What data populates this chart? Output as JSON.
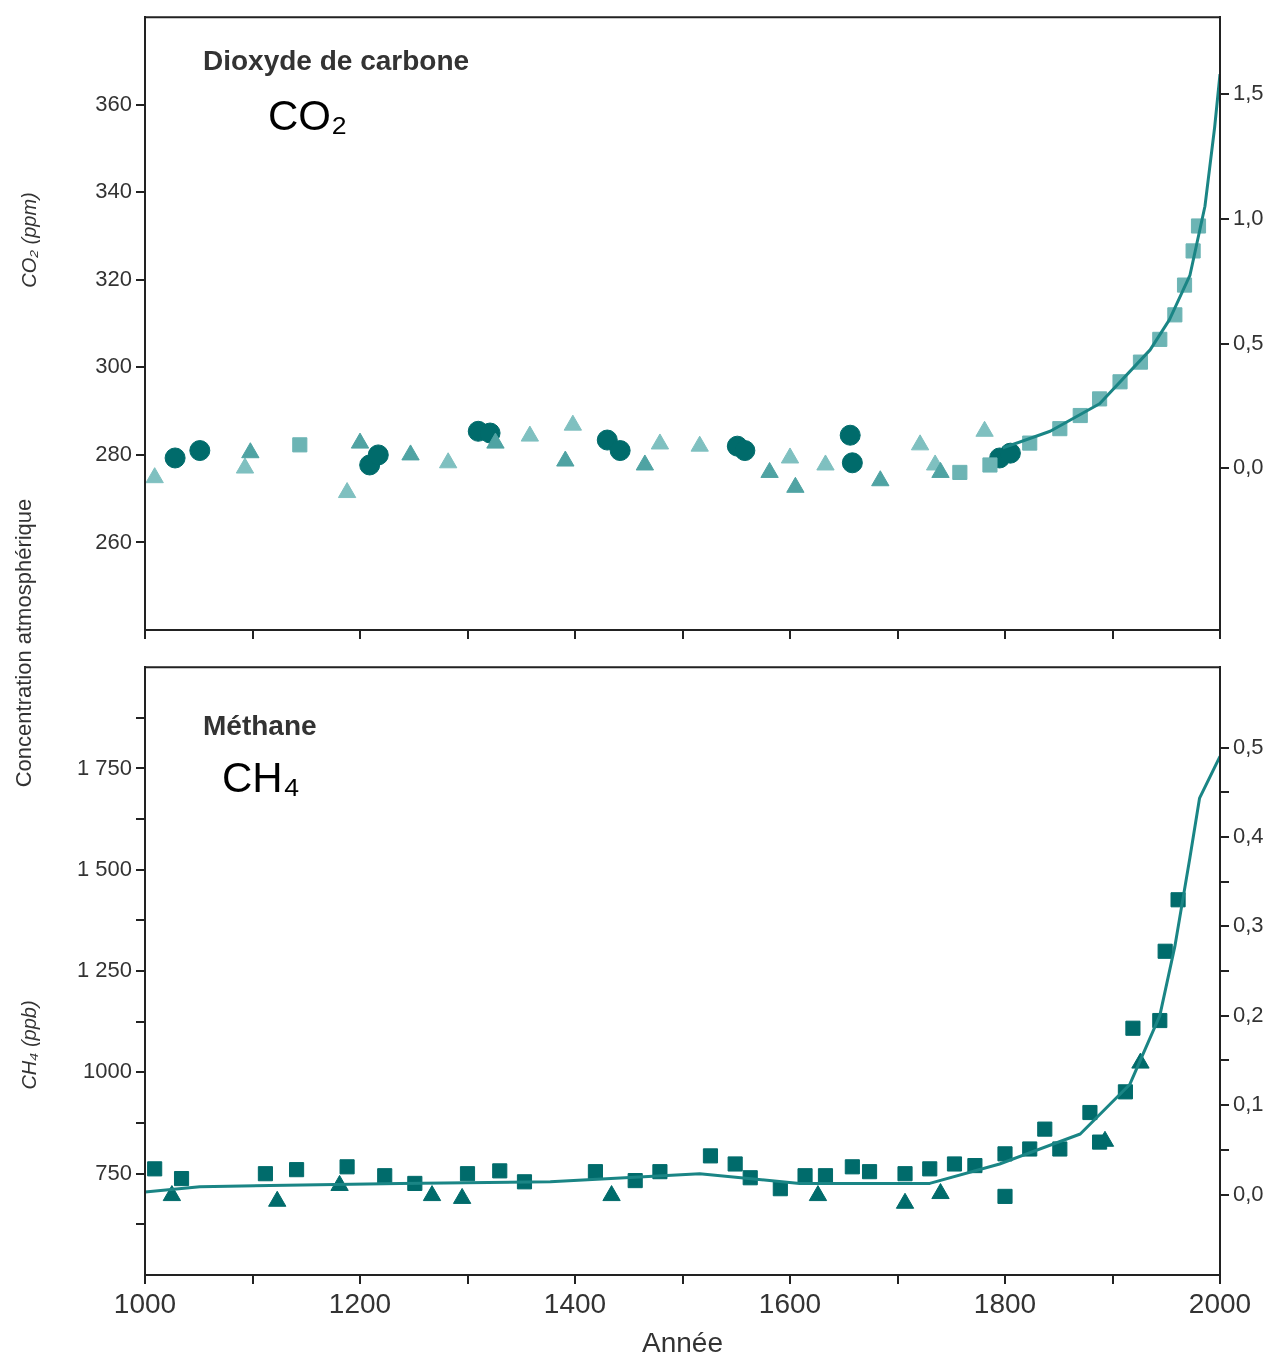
{
  "chart_data": [
    {
      "type": "scatter",
      "ylabel": "CO₂ (ppm)",
      "annotations": [
        "Dioxyde de carbone",
        "CO₂",
        "Concentration atmosphérique"
      ],
      "xlim": [
        1000,
        2000
      ],
      "xticks": [
        {
          "value": 1000,
          "label": null
        },
        {
          "value": 1100,
          "label": null
        },
        {
          "value": 1200,
          "label": null
        },
        {
          "value": 1300,
          "label": null
        },
        {
          "value": 1400,
          "label": null
        },
        {
          "value": 1500,
          "label": null
        },
        {
          "value": 1600,
          "label": null
        },
        {
          "value": 1700,
          "label": null
        },
        {
          "value": 1800,
          "label": null
        },
        {
          "value": 1900,
          "label": null
        },
        {
          "value": 2000,
          "label": null
        }
      ],
      "ylim": [
        240,
        380
      ],
      "yticks": [
        260,
        280,
        300,
        320,
        340,
        360
      ],
      "y2lim": [
        -0.65,
        1.81
      ],
      "y2ticks": [
        {
          "value": 0,
          "label": "0,0"
        },
        {
          "value": 0.5,
          "label": "0,5"
        },
        {
          "value": 1,
          "label": "1,0"
        },
        {
          "value": 1.5,
          "label": "1,5"
        }
      ],
      "tick_labels": "y",
      "grid": false,
      "series": [
        {
          "marker": "circle",
          "color": "#006b6b",
          "x": [
            1028,
            1051,
            1209,
            1217,
            1310,
            1321,
            1430,
            1442,
            1551,
            1558,
            1656,
            1658,
            1795,
            1805
          ],
          "values": [
            279.3,
            281,
            277.7,
            280,
            285.4,
            285,
            283.4,
            281,
            282,
            281,
            284.5,
            278.2,
            279.3,
            280.4
          ]
        },
        {
          "marker": "triangle",
          "color": "#7fc0c0",
          "x": [
            1009,
            1093,
            1188,
            1282,
            1358,
            1398,
            1479,
            1516,
            1600,
            1633,
            1721,
            1735,
            1781
          ],
          "values": [
            274.8,
            277,
            271.4,
            278.2,
            284.3,
            286.8,
            282.5,
            282,
            279.3,
            277.7,
            282.3,
            277.7,
            285.4
          ]
        },
        {
          "marker": "triangle",
          "color": "#4fa3a3",
          "x": [
            1098,
            1200,
            1247,
            1326,
            1391,
            1465,
            1581,
            1605,
            1684,
            1740
          ],
          "values": [
            280.5,
            282.7,
            280,
            282.7,
            278.6,
            277.7,
            276,
            272.6,
            274.1,
            276
          ]
        },
        {
          "marker": "square",
          "color": "#6cb4b4",
          "x": [
            1144,
            1758,
            1786,
            1823,
            1851,
            1870,
            1888,
            1907,
            1926,
            1944,
            1958,
            1967,
            1975,
            1980
          ],
          "values": [
            282.3,
            276,
            277.7,
            282.7,
            286,
            289,
            292.8,
            296.7,
            301.2,
            306.4,
            312,
            318.8,
            326.6,
            332.3
          ]
        },
        {
          "type": "line",
          "marker": "none",
          "color": "#1a8585",
          "x": [
            1798,
            1842,
            1888,
            1935,
            1953,
            1972,
            1986,
            1995,
            2000
          ],
          "values": [
            281.6,
            285.4,
            291.7,
            304,
            310.9,
            321,
            336.8,
            354.8,
            367
          ]
        }
      ]
    },
    {
      "type": "scatter",
      "ylabel": "CH₄ (ppb)",
      "xlabel": "Année",
      "annotations": [
        "Méthane",
        "CH₄"
      ],
      "xlim": [
        1000,
        2000
      ],
      "xticks": [
        1000,
        {
          "value": 1100,
          "label": null
        },
        1200,
        {
          "value": 1300,
          "label": null
        },
        1400,
        {
          "value": 1500,
          "label": null
        },
        1600,
        {
          "value": 1700,
          "label": null
        },
        1800,
        {
          "value": 1900,
          "label": null
        },
        2000
      ],
      "ylim": [
        500,
        2000
      ],
      "yticks": [
        {
          "value": 625,
          "label": null
        },
        750,
        {
          "value": 875,
          "label": null
        },
        1000,
        {
          "value": 1125,
          "label": null
        },
        {
          "value": 1250,
          "label": "1 250"
        },
        {
          "value": 1375,
          "label": null
        },
        {
          "value": 1500,
          "label": "1 500"
        },
        {
          "value": 1625,
          "label": null
        },
        {
          "value": 1750,
          "label": "1 750"
        },
        {
          "value": 1875,
          "label": null
        }
      ],
      "y2lim": [
        -0.09,
        0.59
      ],
      "y2ticks": [
        {
          "value": 0,
          "label": "0,0"
        },
        {
          "value": 0.05,
          "label": null
        },
        {
          "value": 0.1,
          "label": "0,1"
        },
        {
          "value": 0.15,
          "label": null
        },
        {
          "value": 0.2,
          "label": "0,2"
        },
        {
          "value": 0.25,
          "label": null
        },
        {
          "value": 0.3,
          "label": "0,3"
        },
        {
          "value": 0.35,
          "label": null
        },
        {
          "value": 0.4,
          "label": "0,4"
        },
        {
          "value": 0.45,
          "label": null
        },
        {
          "value": 0.5,
          "label": "0,5"
        }
      ],
      "grid": false,
      "series": [
        {
          "marker": "square",
          "color": "#006b6b",
          "x": [
            1009,
            1034,
            1112,
            1141,
            1188,
            1223,
            1251,
            1300,
            1330,
            1353,
            1419,
            1456,
            1479,
            1526,
            1549,
            1563,
            1591,
            1614,
            1633,
            1658,
            1674,
            1707,
            1730,
            1753,
            1772,
            1800,
            1800,
            1823,
            1837,
            1851,
            1879,
            1888,
            1912,
            1919,
            1944,
            1949,
            1961
          ],
          "values": [
            762,
            738,
            750,
            760,
            767,
            745,
            726,
            750,
            757,
            730,
            755,
            733,
            755,
            794,
            774,
            740,
            713,
            745,
            745,
            767,
            755,
            750,
            762,
            774,
            770,
            799,
            694,
            811,
            860,
            811,
            901,
            828,
            952,
            1109,
            1128,
            1299,
            1426
          ]
        },
        {
          "marker": "triangle",
          "color": "#006b6b",
          "x": [
            1025,
            1123,
            1181,
            1267,
            1295,
            1434,
            1626,
            1707,
            1740,
            1893,
            1926
          ],
          "values": [
            696,
            682,
            721,
            696,
            689,
            696,
            696,
            677,
            701,
            830,
            1023
          ]
        },
        {
          "type": "line",
          "marker": "none",
          "color": "#1a8585",
          "x": [
            1000,
            1051,
            1237,
            1377,
            1516,
            1609,
            1730,
            1795,
            1870,
            1916,
            1944,
            1958,
            1972,
            1981,
            2000
          ],
          "values": [
            705,
            718,
            726,
            730,
            750,
            726,
            726,
            774,
            848,
            970,
            1140,
            1311,
            1530,
            1677,
            1780
          ]
        }
      ]
    }
  ]
}
